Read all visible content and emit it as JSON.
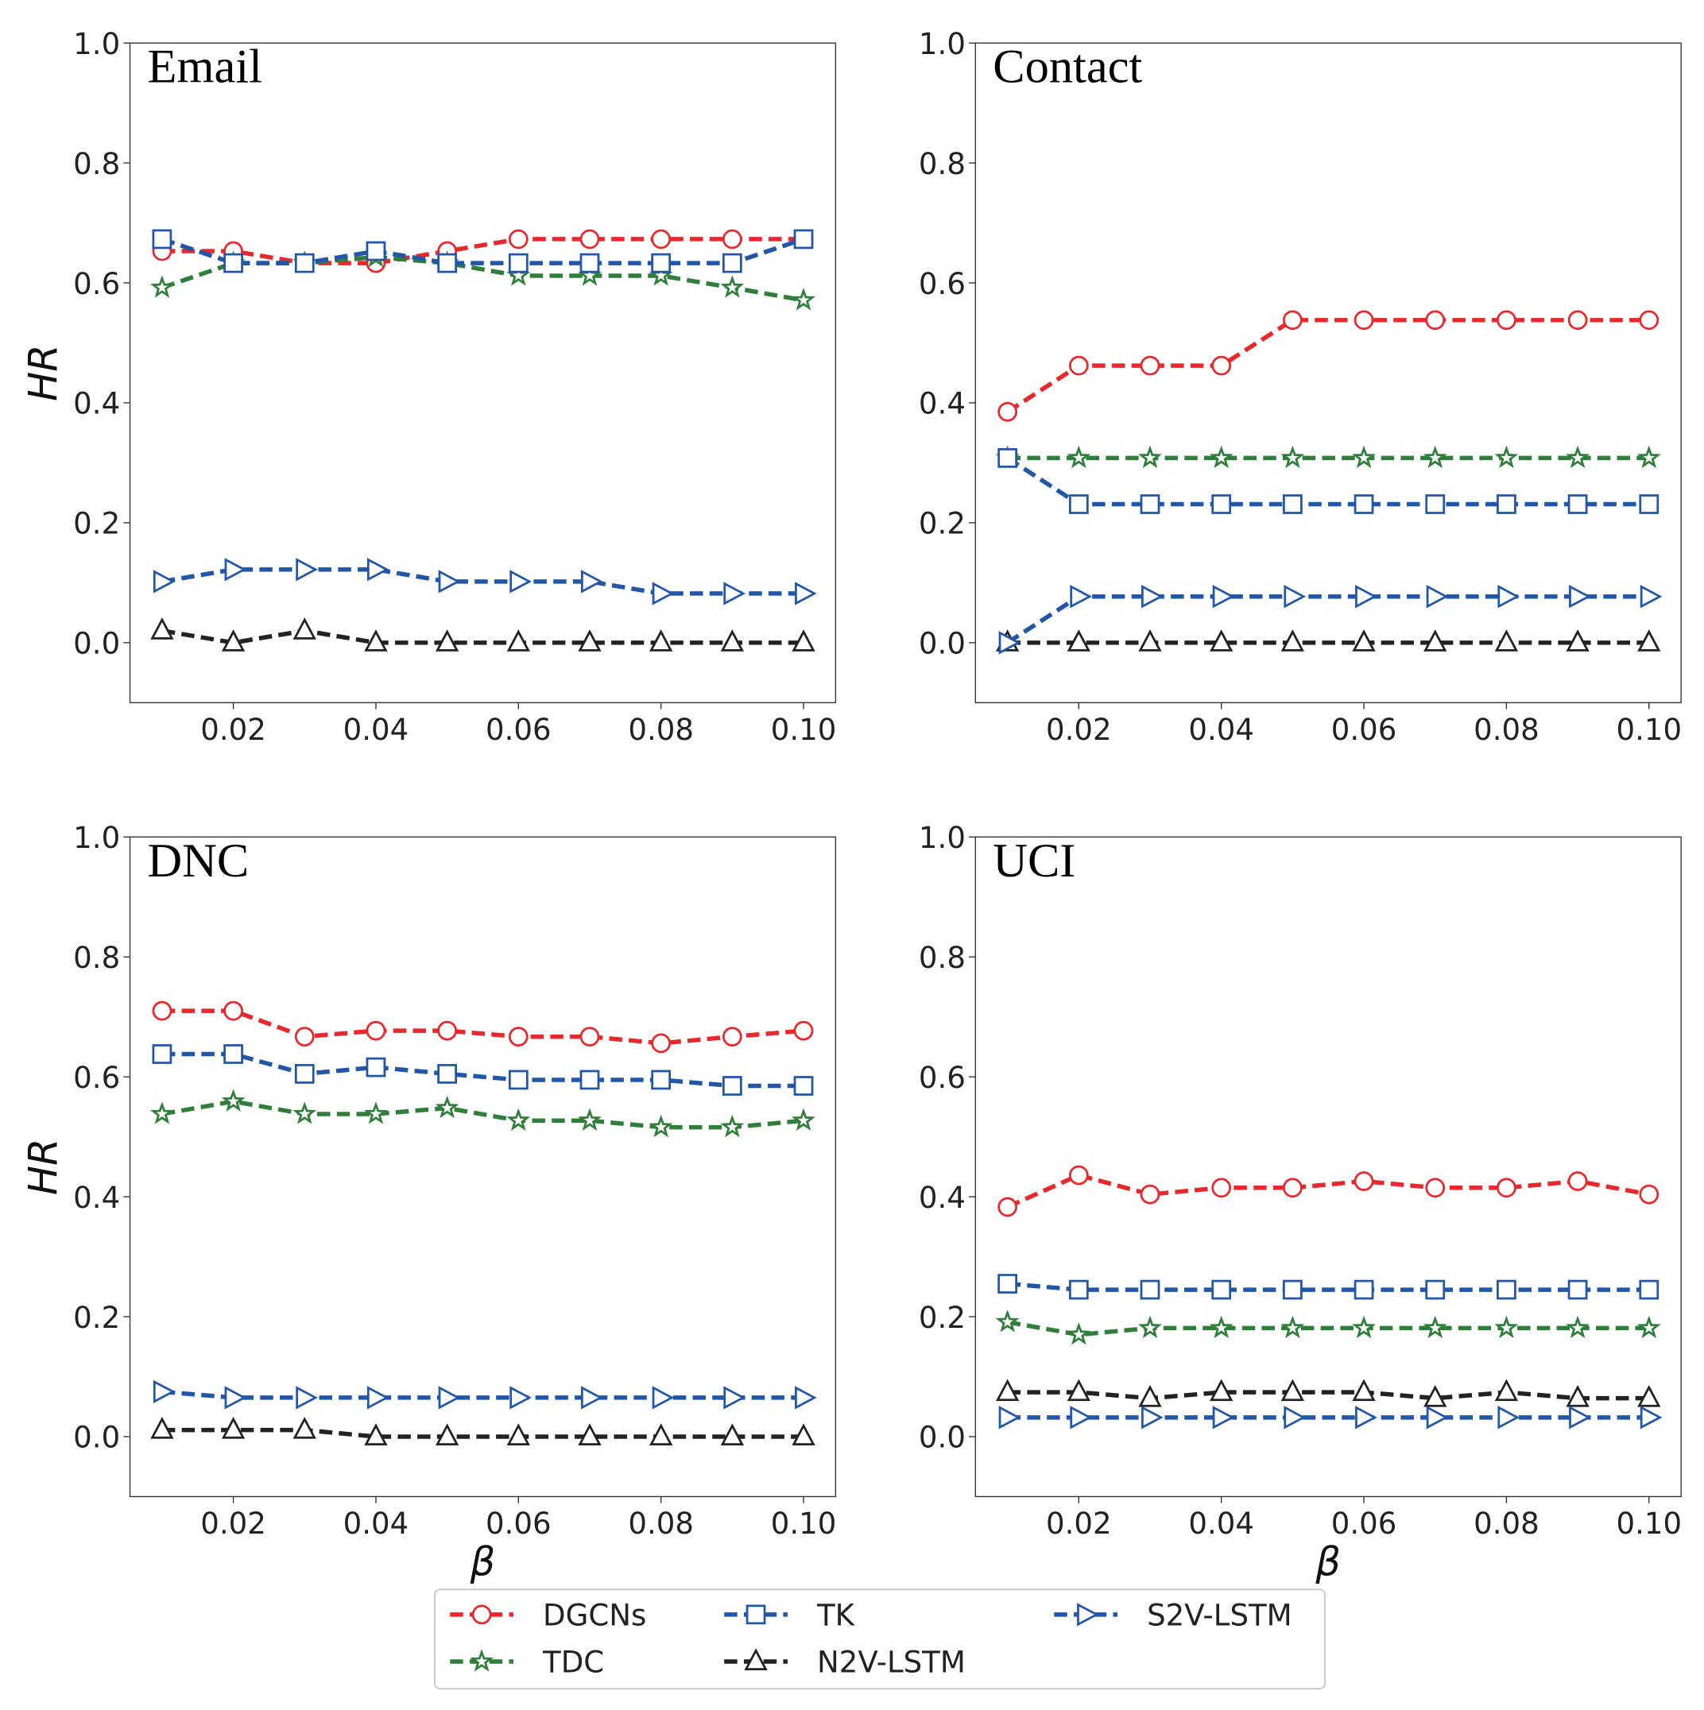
{
  "chart_data": {
    "type": "line",
    "x": [
      0.01,
      0.02,
      0.03,
      0.04,
      0.05,
      0.06,
      0.07,
      0.08,
      0.09,
      0.1
    ],
    "xticks": [
      "0.02",
      "0.04",
      "0.06",
      "0.08",
      "0.10"
    ],
    "yticks": [
      "0.0",
      "0.2",
      "0.4",
      "0.6",
      "0.8",
      "1.0"
    ],
    "xlim": [
      0.0055,
      0.1045
    ],
    "ylim": [
      -0.1,
      1.0
    ],
    "xlabel": "β",
    "ylabel": "HR",
    "legend_placement": "bottom-center",
    "series_styles": [
      {
        "name": "DGCNs",
        "color": "#e8282c",
        "marker": "circle"
      },
      {
        "name": "TDC",
        "color": "#2f7f3b",
        "marker": "star"
      },
      {
        "name": "TK",
        "color": "#2257a8",
        "marker": "square"
      },
      {
        "name": "N2V-LSTM",
        "color": "#222222",
        "marker": "triangle-up"
      },
      {
        "name": "S2V-LSTM",
        "color": "#2257a8",
        "marker": "triangle-right"
      }
    ],
    "panels": [
      {
        "title": "Email",
        "series": [
          {
            "name": "DGCNs",
            "values": [
              0.653,
              0.653,
              0.633,
              0.633,
              0.653,
              0.673,
              0.673,
              0.673,
              0.673,
              0.673
            ]
          },
          {
            "name": "TDC",
            "values": [
              0.592,
              0.633,
              0.633,
              0.643,
              0.633,
              0.612,
              0.612,
              0.612,
              0.592,
              0.571
            ]
          },
          {
            "name": "TK",
            "values": [
              0.673,
              0.633,
              0.633,
              0.653,
              0.633,
              0.633,
              0.633,
              0.633,
              0.633,
              0.673
            ]
          },
          {
            "name": "N2V-LSTM",
            "values": [
              0.02,
              0.0,
              0.02,
              0.0,
              0.0,
              0.0,
              0.0,
              0.0,
              0.0,
              0.0
            ]
          },
          {
            "name": "S2V-LSTM",
            "values": [
              0.102,
              0.122,
              0.122,
              0.122,
              0.102,
              0.102,
              0.102,
              0.082,
              0.082,
              0.082
            ]
          }
        ]
      },
      {
        "title": "Contact",
        "series": [
          {
            "name": "DGCNs",
            "values": [
              0.385,
              0.462,
              0.462,
              0.462,
              0.538,
              0.538,
              0.538,
              0.538,
              0.538,
              0.538
            ]
          },
          {
            "name": "TDC",
            "values": [
              0.308,
              0.308,
              0.308,
              0.308,
              0.308,
              0.308,
              0.308,
              0.308,
              0.308,
              0.308
            ]
          },
          {
            "name": "TK",
            "values": [
              0.308,
              0.231,
              0.231,
              0.231,
              0.231,
              0.231,
              0.231,
              0.231,
              0.231,
              0.231
            ]
          },
          {
            "name": "N2V-LSTM",
            "values": [
              0,
              0,
              0,
              0,
              0,
              0,
              0,
              0,
              0,
              0
            ]
          },
          {
            "name": "S2V-LSTM",
            "values": [
              0.0,
              0.077,
              0.077,
              0.077,
              0.077,
              0.077,
              0.077,
              0.077,
              0.077,
              0.077
            ]
          }
        ]
      },
      {
        "title": "DNC",
        "series": [
          {
            "name": "DGCNs",
            "values": [
              0.71,
              0.71,
              0.667,
              0.677,
              0.677,
              0.667,
              0.667,
              0.656,
              0.667,
              0.677
            ]
          },
          {
            "name": "TDC",
            "values": [
              0.538,
              0.559,
              0.538,
              0.538,
              0.548,
              0.527,
              0.527,
              0.516,
              0.516,
              0.527
            ]
          },
          {
            "name": "TK",
            "values": [
              0.638,
              0.638,
              0.605,
              0.616,
              0.605,
              0.595,
              0.595,
              0.595,
              0.585,
              0.585
            ]
          },
          {
            "name": "N2V-LSTM",
            "values": [
              0.011,
              0.011,
              0.011,
              0.0,
              0.0,
              0.0,
              0.0,
              0.0,
              0.0,
              0.0
            ]
          },
          {
            "name": "S2V-LSTM",
            "values": [
              0.075,
              0.065,
              0.065,
              0.065,
              0.065,
              0.065,
              0.065,
              0.065,
              0.065,
              0.065
            ]
          }
        ]
      },
      {
        "title": "UCI",
        "series": [
          {
            "name": "DGCNs",
            "values": [
              0.383,
              0.436,
              0.404,
              0.415,
              0.415,
              0.426,
              0.415,
              0.415,
              0.426,
              0.404
            ]
          },
          {
            "name": "TDC",
            "values": [
              0.191,
              0.17,
              0.181,
              0.181,
              0.181,
              0.181,
              0.181,
              0.181,
              0.181,
              0.181
            ]
          },
          {
            "name": "TK",
            "values": [
              0.255,
              0.245,
              0.245,
              0.245,
              0.245,
              0.245,
              0.245,
              0.245,
              0.245,
              0.245
            ]
          },
          {
            "name": "N2V-LSTM",
            "values": [
              0.074,
              0.074,
              0.064,
              0.074,
              0.074,
              0.074,
              0.064,
              0.074,
              0.064,
              0.064
            ]
          },
          {
            "name": "S2V-LSTM",
            "values": [
              0.032,
              0.032,
              0.032,
              0.032,
              0.032,
              0.032,
              0.032,
              0.032,
              0.032,
              0.032
            ]
          }
        ]
      }
    ]
  }
}
